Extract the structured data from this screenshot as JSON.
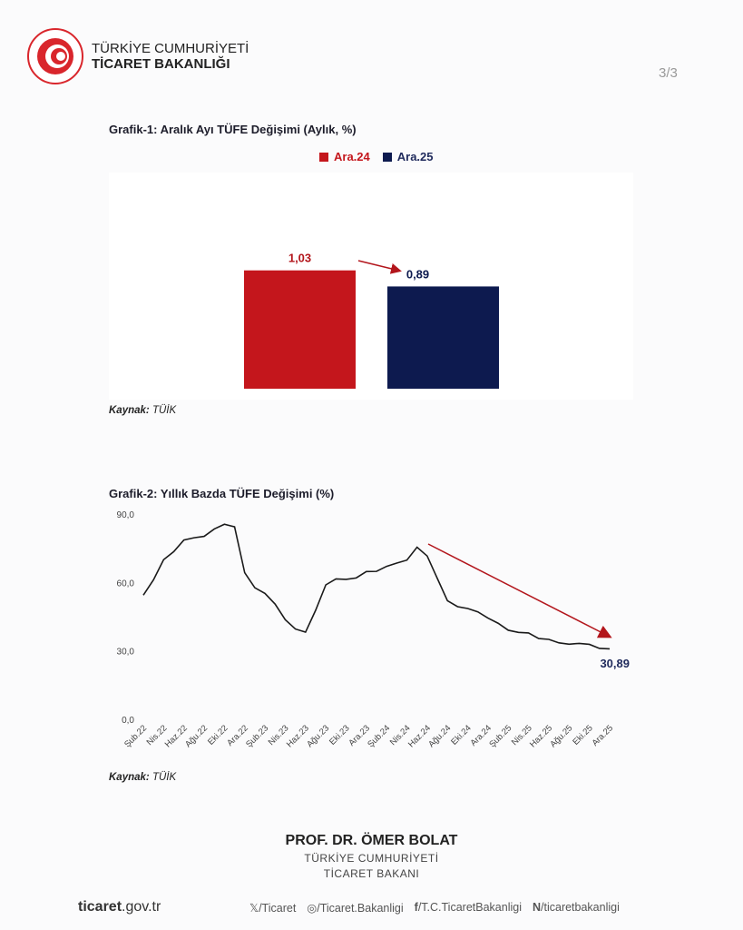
{
  "header": {
    "org_line1": "TÜRKİYE CUMHURİYETİ",
    "org_line2": "TİCARET BAKANLIĞI",
    "page_number": "3/3"
  },
  "chart_data": [
    {
      "type": "bar",
      "title": "Grafik-1: Aralık Ayı TÜFE Değişimi (Aylık, %)",
      "categories": [
        "Ara.24",
        "Ara.25"
      ],
      "values": [
        1.03,
        0.89
      ],
      "value_labels": [
        "1,03",
        "0,89"
      ],
      "colors": [
        "#c4161c",
        "#0d1a4f"
      ],
      "legend_placement": "top",
      "grid": false,
      "source_label": "Kaynak:",
      "source": "TÜİK"
    },
    {
      "type": "line",
      "title": "Grafik-2: Yıllık Bazda TÜFE Değişimi (%)",
      "x": [
        "Şub.22",
        "Mar.22",
        "Nis.22",
        "May.22",
        "Haz.22",
        "Tem.22",
        "Ağu.22",
        "Eyl.22",
        "Eki.22",
        "Kas.22",
        "Ara.22",
        "Oca.23",
        "Şub.23",
        "Mar.23",
        "Nis.23",
        "May.23",
        "Haz.23",
        "Tem.23",
        "Ağu.23",
        "Eyl.23",
        "Eki.23",
        "Kas.23",
        "Ara.23",
        "Oca.24",
        "Şub.24",
        "Mar.24",
        "Nis.24",
        "May.24",
        "Haz.24",
        "Tem.24",
        "Ağu.24",
        "Eyl.24",
        "Eki.24",
        "Kas.24",
        "Ara.24",
        "Oca.25",
        "Şub.25",
        "Mar.25",
        "Nis.25",
        "May.25",
        "Haz.25",
        "Tem.25",
        "Ağu.25",
        "Eyl.25",
        "Eki.25",
        "Kas.25",
        "Ara.25"
      ],
      "y": [
        54.44,
        61.14,
        69.97,
        73.5,
        78.62,
        79.6,
        80.21,
        83.45,
        85.51,
        84.39,
        64.27,
        57.68,
        55.18,
        50.51,
        43.68,
        39.59,
        38.21,
        47.83,
        58.94,
        61.53,
        61.36,
        61.98,
        64.77,
        64.86,
        67.07,
        68.5,
        69.8,
        75.45,
        71.6,
        61.78,
        51.97,
        49.38,
        48.58,
        47.09,
        44.38,
        42.12,
        39.05,
        38.1,
        37.86,
        35.41,
        35.05,
        33.52,
        32.95,
        33.29,
        32.87,
        31.07,
        30.89
      ],
      "x_tick_labels": [
        "Şub.22",
        "Nis.22",
        "Haz.22",
        "Ağu.22",
        "Eki.22",
        "Ara.22",
        "Şub.23",
        "Nis.23",
        "Haz.23",
        "Ağu.23",
        "Eki.23",
        "Ara.23",
        "Şub.24",
        "Nis.24",
        "Haz.24",
        "Ağu.24",
        "Eki.24",
        "Ara.24",
        "Şub.25",
        "Nis.25",
        "Haz.25",
        "Ağu.25",
        "Eki.25",
        "Ara.25"
      ],
      "y_ticks": [
        0,
        30,
        60,
        90
      ],
      "y_tick_labels": [
        "0,0",
        "30,0",
        "60,0",
        "90,0"
      ],
      "ylim": [
        0,
        90
      ],
      "line_color": "#1a1a1a",
      "trend_arrow_color": "#b3161c",
      "annotation": "30,89",
      "grid": false,
      "source_label": "Kaynak:",
      "source": "TÜİK"
    }
  ],
  "signature": {
    "name": "PROF. DR. ÖMER BOLAT",
    "line1": "TÜRKİYE CUMHURİYETİ",
    "line2": "TİCARET BAKANI"
  },
  "footer": {
    "site_bold": "ticaret",
    "site_rest": ".gov.tr",
    "social": [
      {
        "icon": "x-icon",
        "text": "/Ticaret"
      },
      {
        "icon": "instagram-icon",
        "text": "/Ticaret.Bakanligi"
      },
      {
        "icon": "facebook-icon",
        "text": "/T.C.TicaretBakanligi"
      },
      {
        "icon": "nsosyal-icon",
        "text": "/ticaretbakanligi"
      }
    ]
  }
}
